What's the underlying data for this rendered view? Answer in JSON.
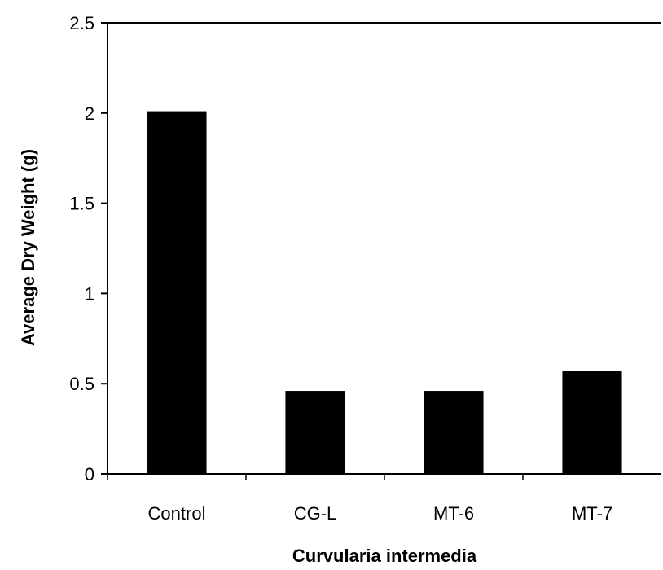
{
  "chart_data": {
    "type": "bar",
    "categories": [
      "Control",
      "CG-L",
      "MT-6",
      "MT-7"
    ],
    "values": [
      2.01,
      0.46,
      0.46,
      0.57
    ],
    "title": "",
    "xlabel": "Curvularia intermedia",
    "ylabel": "Average Dry Weight (g)",
    "ylim": [
      0,
      2.5
    ],
    "yticks": [
      "0",
      "0.5",
      "1",
      "1.5",
      "2",
      "2.5"
    ],
    "grid": false,
    "bar_color": "#000000"
  }
}
